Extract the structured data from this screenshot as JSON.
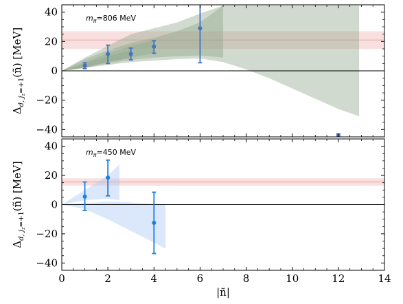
{
  "chart_data": [
    {
      "type": "scatter",
      "annotation": "m_π=806 MeV",
      "annotation_sub": "π",
      "annotation_pre": "m",
      "annotation_post": "=806 MeV",
      "ylabel": "Δ_{d, j_z=+1}(ñ) [MeV]",
      "ylabel_main": "Δ",
      "ylabel_sub": "d, j",
      "ylabel_subsub": "z",
      "ylabel_sub2": "=+1",
      "ylabel_rest": "(ñ) [MeV]",
      "xlim": [
        0,
        14
      ],
      "ylim": [
        -45,
        45
      ],
      "yticks": [
        "−40",
        "−20",
        "0",
        "20",
        "40"
      ],
      "ytick_values": [
        -40,
        -20,
        0,
        20,
        40
      ],
      "reference_band": {
        "center": 21,
        "low": 15,
        "high": 27,
        "color": "#f4c7c7"
      },
      "zero_line": 0,
      "marker_color": "#4472c4",
      "band_color": "#8fa88a",
      "points": [
        {
          "x": 1,
          "y": 3.5,
          "ylo": 1.5,
          "yhi": 5.5
        },
        {
          "x": 2,
          "y": 11.5,
          "ylo": 5,
          "yhi": 17.5
        },
        {
          "x": 3,
          "y": 11.5,
          "ylo": 7.5,
          "yhi": 15.5
        },
        {
          "x": 4,
          "y": 16.5,
          "ylo": 12,
          "yhi": 20.5
        },
        {
          "x": 6,
          "y": 29,
          "ylo": 5.5,
          "yhi": 46
        },
        {
          "x": 12,
          "y": -44,
          "ylo": -46,
          "yhi": -43
        }
      ],
      "bands": [
        {
          "x": [
            0,
            1,
            2,
            2.5,
            3,
            4,
            5,
            6,
            7,
            8,
            9,
            10,
            11,
            12,
            12.9,
            12.9
          ],
          "upper": [
            0,
            9,
            17,
            21,
            25,
            29,
            33,
            39,
            44.5,
            44.5,
            44.5,
            44.5,
            44.5,
            44.5,
            44.5,
            44.5
          ],
          "lower": [
            0,
            2,
            4,
            5,
            6,
            7,
            8,
            8.5,
            6,
            1,
            -5,
            -12,
            -19,
            -26,
            -31,
            -31
          ]
        },
        {
          "x": [
            0,
            1,
            2,
            3,
            4,
            5,
            6,
            7
          ],
          "upper": [
            0,
            8,
            14,
            19,
            22.5,
            27,
            33,
            44.5
          ],
          "lower": [
            0,
            2,
            5,
            7.5,
            9,
            10,
            10.5,
            9
          ]
        },
        {
          "x": [
            0,
            1,
            2,
            3,
            4
          ],
          "upper": [
            0,
            6,
            12,
            17,
            21
          ],
          "lower": [
            0,
            2,
            6,
            9,
            12
          ]
        },
        {
          "x": [
            0,
            1,
            2,
            3
          ],
          "upper": [
            0,
            5,
            10,
            14
          ],
          "lower": [
            0,
            2.5,
            6,
            9
          ]
        }
      ]
    },
    {
      "type": "scatter",
      "annotation_pre": "m",
      "annotation_sub": "π",
      "annotation_post": "=450 MeV",
      "ylabel_main": "Δ",
      "ylabel_sub": "d, j",
      "ylabel_subsub": "z",
      "ylabel_sub2": "=+1",
      "ylabel_rest": "(ñ) [MeV]",
      "xlabel": "|ñ|",
      "xlim": [
        0,
        14
      ],
      "ylim": [
        -45,
        45
      ],
      "xticks": [
        "0",
        "2",
        "4",
        "6",
        "8",
        "10",
        "12",
        "14"
      ],
      "xtick_values": [
        0,
        2,
        4,
        6,
        8,
        10,
        12,
        14
      ],
      "yticks": [
        "−40",
        "−20",
        "0",
        "20",
        "40"
      ],
      "ytick_values": [
        -40,
        -20,
        0,
        20,
        40
      ],
      "reference_band": {
        "center": 15.5,
        "low": 13,
        "high": 18,
        "color": "#f4c7c7"
      },
      "zero_line": 0,
      "marker_color": "#1b7fe0",
      "band_color": "#a9c6f2",
      "points": [
        {
          "x": 1,
          "y": 5.5,
          "ylo": -4,
          "yhi": 15.5
        },
        {
          "x": 2,
          "y": 18.5,
          "ylo": 6,
          "yhi": 30.5
        },
        {
          "x": 4,
          "y": -12.5,
          "ylo": -33.5,
          "yhi": 8.5
        }
      ],
      "bands": [
        {
          "x": [
            0,
            1,
            2,
            3,
            4,
            4.5
          ],
          "upper": [
            0,
            1,
            2,
            1.5,
            0.5,
            0
          ],
          "lower": [
            0,
            -3,
            -10,
            -18,
            -26,
            -30
          ]
        },
        {
          "x": [
            0,
            1,
            2,
            2.5
          ],
          "upper": [
            0,
            10,
            20,
            27.5
          ],
          "lower": [
            0,
            3,
            4,
            3
          ]
        }
      ]
    }
  ]
}
